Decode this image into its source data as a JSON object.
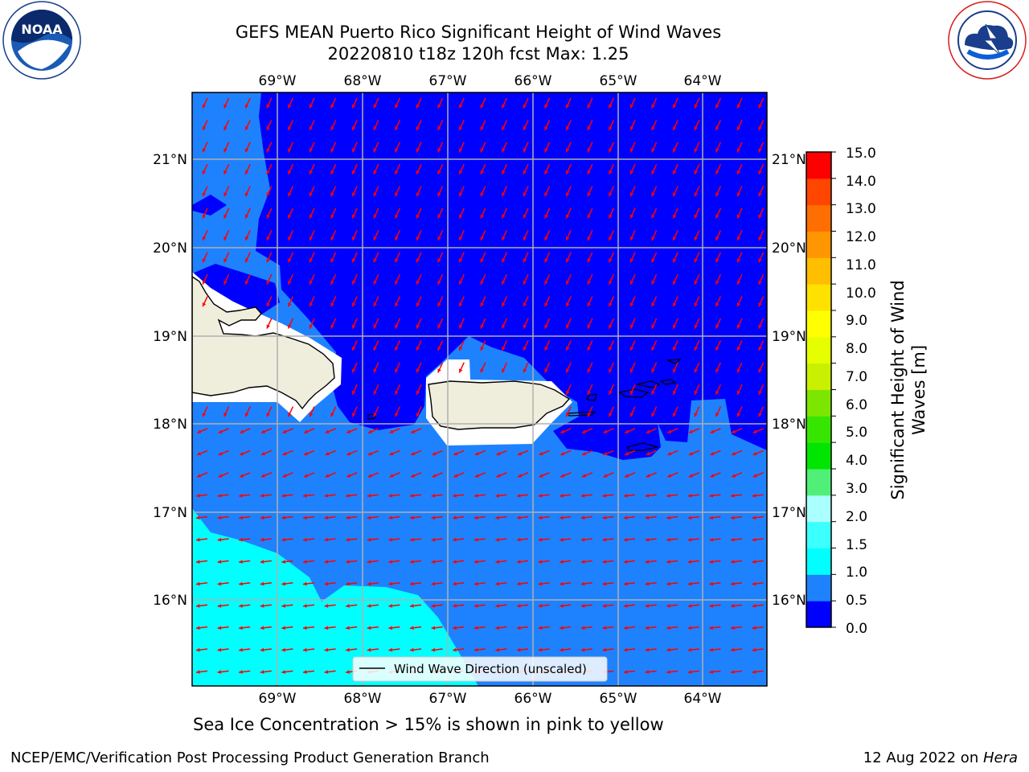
{
  "title": {
    "line1": "GEFS MEAN Puerto Rico Significant Height of Wind Waves",
    "line2": "20220810 t18z 120h fcst   Max: 1.25"
  },
  "logos": {
    "left": {
      "name": "noaa-logo",
      "text": "NOAA",
      "ring_text": "NATIONAL OCEANIC AND ATMOSPHERIC ADMINISTRATION · U.S. DEPARTMENT OF COMMERCE"
    },
    "right": {
      "name": "nws-logo",
      "ring_text": "NATIONAL WEATHER SERVICE"
    }
  },
  "map": {
    "lon_labels": [
      "69°W",
      "68°W",
      "67°W",
      "66°W",
      "65°W",
      "64°W"
    ],
    "lat_labels": [
      "21°N",
      "20°N",
      "19°N",
      "18°N",
      "17°N",
      "16°N"
    ],
    "lon_values": [
      -69,
      -68,
      -67,
      -66,
      -65,
      -64
    ],
    "lat_values": [
      21,
      20,
      19,
      18,
      17,
      16
    ],
    "extent": {
      "lon_min": -70,
      "lon_max": -63.25,
      "lat_min": 15.0,
      "lat_max": 21.75
    },
    "legend_label": "Wind Wave Direction (unscaled)",
    "arrow_color": "#ff0000",
    "land_color": "#efeddc",
    "coast_color": "#000000"
  },
  "colorbar": {
    "label": "Significant Height of Wind Waves [m]",
    "label_line1": "Significant Height of Wind",
    "label_line2": "Waves [m]",
    "ticks": [
      "15.0",
      "14.0",
      "13.0",
      "12.0",
      "11.0",
      "10.0",
      "9.0",
      "8.0",
      "7.0",
      "6.0",
      "5.0",
      "4.0",
      "3.0",
      "2.0",
      "1.5",
      "1.0",
      "0.5",
      "0.0"
    ],
    "colors_bottom_to_top": [
      "#0000ff",
      "#1e82ff",
      "#00ffff",
      "#3cffff",
      "#aaffff",
      "#50f078",
      "#00e600",
      "#37e600",
      "#7de600",
      "#c8f000",
      "#e6ff00",
      "#ffff00",
      "#ffe100",
      "#ffbe00",
      "#ff9600",
      "#ff6e00",
      "#ff4600",
      "#ff0000"
    ]
  },
  "note": "Sea Ice Concentration > 15% is shown in pink to yellow",
  "footer": {
    "credit": "NCEP/EMC/Verification Post Processing Product Generation Branch",
    "date_prefix": "12 Aug 2022 on ",
    "date_host": "Hera"
  }
}
